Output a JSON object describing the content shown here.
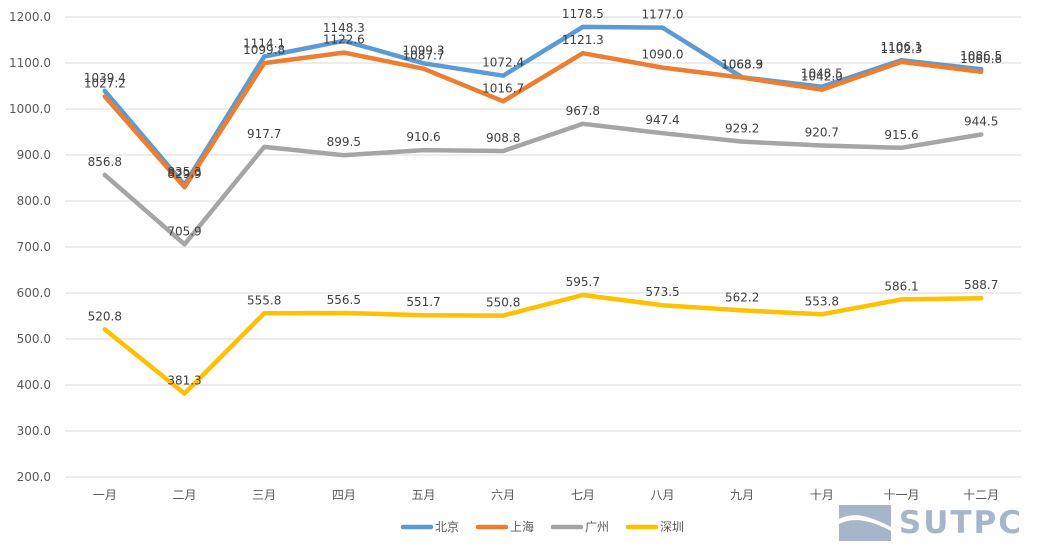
{
  "chart_data": {
    "type": "line",
    "title": "",
    "xlabel": "",
    "ylabel": "",
    "categories": [
      "一月",
      "二月",
      "三月",
      "四月",
      "五月",
      "六月",
      "七月",
      "八月",
      "九月",
      "十月",
      "十一月",
      "十二月"
    ],
    "ylim": [
      200,
      1200
    ],
    "yticks": [
      "200.0",
      "300.0",
      "400.0",
      "500.0",
      "600.0",
      "700.0",
      "800.0",
      "900.0",
      "1000.0",
      "1100.0",
      "1200.0"
    ],
    "grid": true,
    "legend_position": "bottom",
    "series": [
      {
        "name": "北京",
        "color": "#5b9bd5",
        "values": [
          1039.4,
          835.3,
          1114.1,
          1148.3,
          1099.3,
          1072.4,
          1178.5,
          1177.0,
          1068.9,
          1048.5,
          1106.1,
          1086.5
        ],
        "labels": [
          "1039.4",
          "835.3",
          "1114.1",
          "1148.3",
          "1099.3",
          "1072.4",
          "1178.5",
          "1177.0",
          "1068.9",
          "1048.5",
          "1106.1",
          "1086.5"
        ]
      },
      {
        "name": "上海",
        "color": "#ed7d31",
        "values": [
          1027.2,
          829.9,
          1099.8,
          1122.6,
          1087.7,
          1016.7,
          1121.3,
          1090.0,
          1068.3,
          1042.0,
          1102.3,
          1080.8
        ],
        "labels": [
          "1027.2",
          "829.9",
          "1099.8",
          "1122.6",
          "1087.7",
          "1016.7",
          "1121.3",
          "1090.0",
          "1068.3",
          "1042.0",
          "1102.3",
          "1080.8"
        ]
      },
      {
        "name": "广州",
        "color": "#a5a5a5",
        "values": [
          856.8,
          705.9,
          917.7,
          899.5,
          910.6,
          908.8,
          967.8,
          947.4,
          929.2,
          920.7,
          915.6,
          944.5
        ],
        "labels": [
          "856.8",
          "705.9",
          "917.7",
          "899.5",
          "910.6",
          "908.8",
          "967.8",
          "947.4",
          "929.2",
          "920.7",
          "915.6",
          "944.5"
        ]
      },
      {
        "name": "深圳",
        "color": "#ffc000",
        "values": [
          520.8,
          381.3,
          555.8,
          556.5,
          551.7,
          550.8,
          595.7,
          573.5,
          562.2,
          553.8,
          586.1,
          588.7
        ],
        "labels": [
          "520.8",
          "381.3",
          "555.8",
          "556.5",
          "551.7",
          "550.8",
          "595.7",
          "573.5",
          "562.2",
          "553.8",
          "586.1",
          "588.7"
        ]
      }
    ]
  },
  "watermark": {
    "text": "SUTPC"
  }
}
